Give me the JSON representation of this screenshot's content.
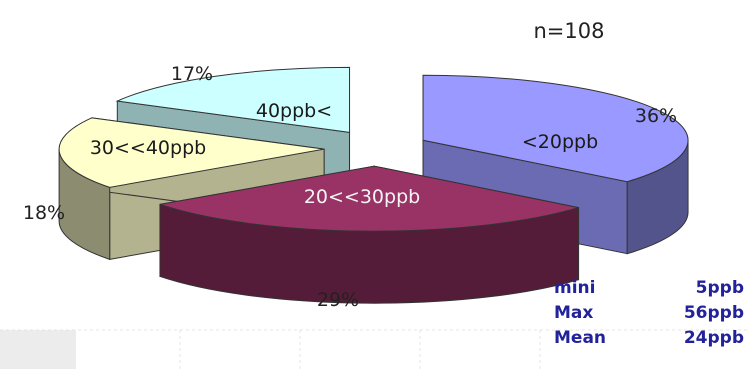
{
  "n_label": "n=108",
  "chart_data": {
    "type": "pie",
    "slices": [
      {
        "label": "<20ppb",
        "value": 36,
        "pct_label": "36%",
        "color": "#9999ff"
      },
      {
        "label": "20<<30ppb",
        "value": 29,
        "pct_label": "29%",
        "color": "#993366"
      },
      {
        "label": "30<<40ppb",
        "value": 18,
        "pct_label": "18%",
        "color": "#ffffcc"
      },
      {
        "label": "40ppb<",
        "value": 17,
        "pct_label": "17%",
        "color": "#ccffff"
      }
    ],
    "three_d": true,
    "exploded": true
  },
  "stats": [
    {
      "label": "mini",
      "value": "5ppb"
    },
    {
      "label": "Max",
      "value": "56ppb"
    },
    {
      "label": "Mean",
      "value": "24ppb"
    }
  ]
}
